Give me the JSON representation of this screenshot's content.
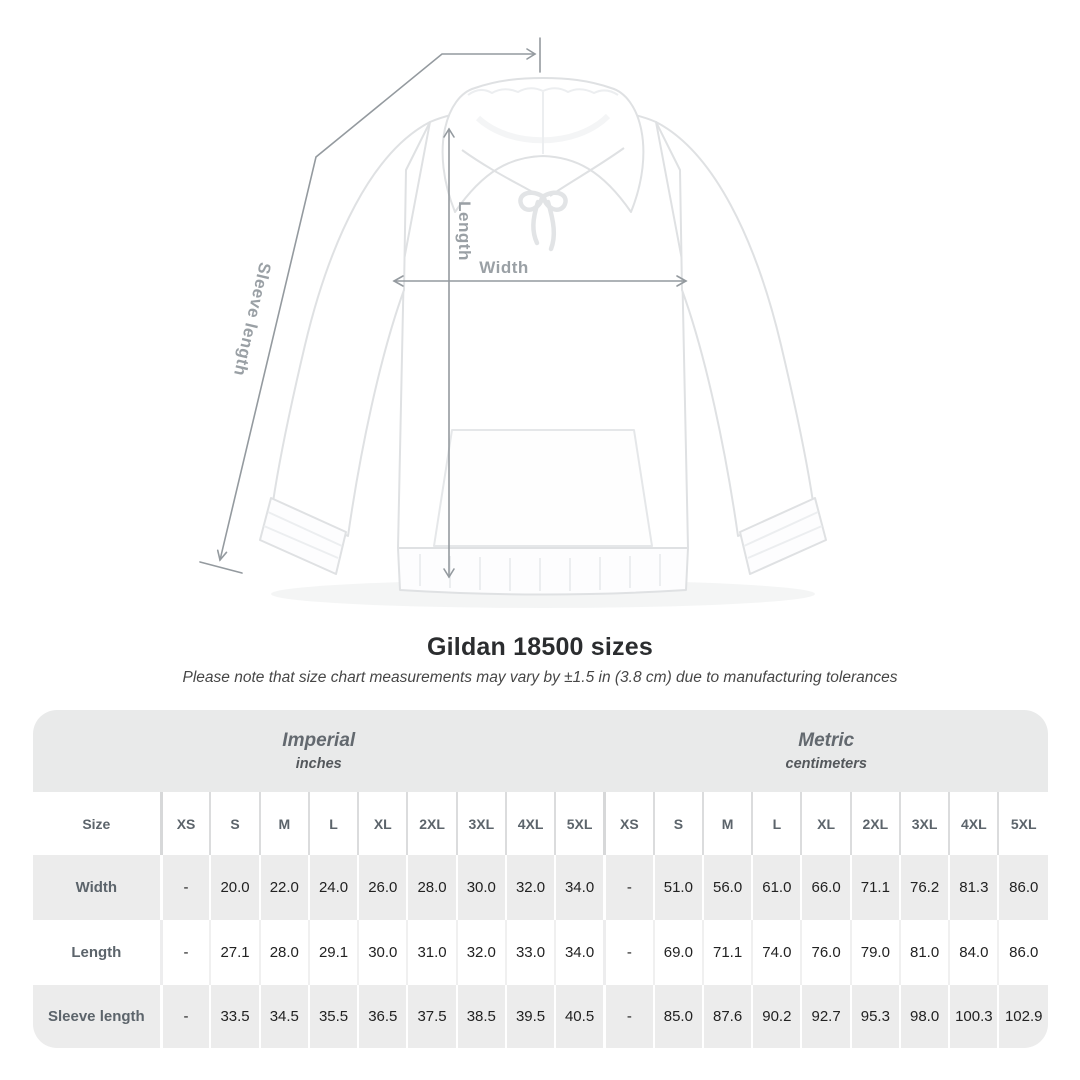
{
  "diagram": {
    "width_label": "Width",
    "length_label": "Length",
    "sleeve_label": "Sleeve length",
    "annotation_color": "#979da2"
  },
  "heading": {
    "title": "Gildan 18500 sizes",
    "subtitle": "Please note that size chart measurements may vary by ±1.5 in (3.8 cm) due to manufacturing tolerances"
  },
  "table": {
    "corner_header": "Size",
    "groups": [
      {
        "name": "Imperial",
        "unit": "inches"
      },
      {
        "name": "Metric",
        "unit": "centimeters"
      }
    ],
    "sizes": [
      "XS",
      "S",
      "M",
      "L",
      "XL",
      "2XL",
      "3XL",
      "4XL",
      "5XL"
    ],
    "rows": [
      {
        "label": "Width",
        "imperial": [
          "-",
          "20.0",
          "22.0",
          "24.0",
          "26.0",
          "28.0",
          "30.0",
          "32.0",
          "34.0"
        ],
        "metric": [
          "-",
          "51.0",
          "56.0",
          "61.0",
          "66.0",
          "71.1",
          "76.2",
          "81.3",
          "86.0"
        ]
      },
      {
        "label": "Length",
        "imperial": [
          "-",
          "27.1",
          "28.0",
          "29.1",
          "30.0",
          "31.0",
          "32.0",
          "33.0",
          "34.0"
        ],
        "metric": [
          "-",
          "69.0",
          "71.1",
          "74.0",
          "76.0",
          "79.0",
          "81.0",
          "84.0",
          "86.0"
        ]
      },
      {
        "label": "Sleeve length",
        "imperial": [
          "-",
          "33.5",
          "34.5",
          "35.5",
          "36.5",
          "37.5",
          "38.5",
          "39.5",
          "40.5"
        ],
        "metric": [
          "-",
          "85.0",
          "87.6",
          "90.2",
          "92.7",
          "95.3",
          "98.0",
          "100.3",
          "102.9"
        ]
      }
    ]
  },
  "chart_data": {
    "type": "table",
    "title": "Gildan 18500 sizes",
    "note": "Please note that size chart measurements may vary by ±1.5 in (3.8 cm) due to manufacturing tolerances",
    "column_groups": [
      {
        "name": "Imperial",
        "unit": "inches"
      },
      {
        "name": "Metric",
        "unit": "centimeters"
      }
    ],
    "columns": [
      "XS",
      "S",
      "M",
      "L",
      "XL",
      "2XL",
      "3XL",
      "4XL",
      "5XL"
    ],
    "rows": [
      {
        "measurement": "Width",
        "imperial_in": [
          null,
          20.0,
          22.0,
          24.0,
          26.0,
          28.0,
          30.0,
          32.0,
          34.0
        ],
        "metric_cm": [
          null,
          51.0,
          56.0,
          61.0,
          66.0,
          71.1,
          76.2,
          81.3,
          86.0
        ]
      },
      {
        "measurement": "Length",
        "imperial_in": [
          null,
          27.1,
          28.0,
          29.1,
          30.0,
          31.0,
          32.0,
          33.0,
          34.0
        ],
        "metric_cm": [
          null,
          69.0,
          71.1,
          74.0,
          76.0,
          79.0,
          81.0,
          84.0,
          86.0
        ]
      },
      {
        "measurement": "Sleeve length",
        "imperial_in": [
          null,
          33.5,
          34.5,
          35.5,
          36.5,
          37.5,
          38.5,
          39.5,
          40.5
        ],
        "metric_cm": [
          null,
          85.0,
          87.6,
          90.2,
          92.7,
          95.3,
          98.0,
          100.3,
          102.9
        ]
      }
    ]
  },
  "colors": {
    "band_gray": "#e9eaea",
    "row_gray": "#ececec",
    "header_text": "#5c646b",
    "value_text": "#222222",
    "annotation_gray": "#979da2"
  }
}
